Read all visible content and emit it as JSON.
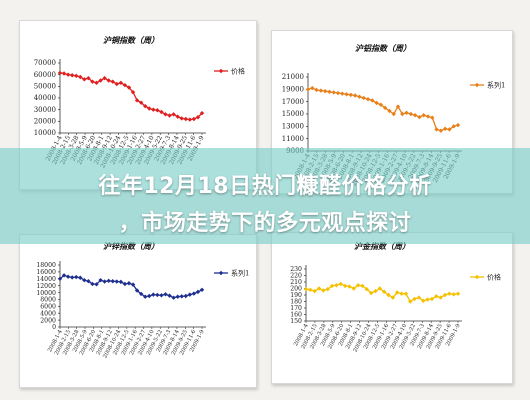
{
  "headline": {
    "line1": "往年12月18日热门糠醛价格分析",
    "line2": "，市场走势下的多元观点探讨"
  },
  "chart_data": [
    {
      "type": "line",
      "title": "沪铜指数（周）",
      "color": "#e02020",
      "marker": "diamond",
      "legend": "价格",
      "legend_position": "right",
      "ylim": [
        10000,
        70000
      ],
      "yticks": [
        10000,
        20000,
        30000,
        40000,
        50000,
        60000,
        70000
      ],
      "ytick_labels": [
        "10000",
        "20000",
        "30000",
        "40000",
        "50000",
        "60000",
        "70000"
      ],
      "xtick_labels": [
        "2008-1-4",
        "2008-2-15",
        "2008-3-28",
        "2008-5-9",
        "2008-6-20",
        "2008-8-1",
        "2008-9-12",
        "2008-10-24",
        "2008-12-5",
        "2009-1-16",
        "2009-2-27",
        "2009-4-10",
        "2009-5-22",
        "2009-7-3",
        "2009-8-14",
        "2009-9-25",
        "2009-11-6",
        "2009-1-9"
      ],
      "values": [
        61500,
        61000,
        60000,
        59500,
        59000,
        58000,
        56000,
        57000,
        54000,
        53000,
        55000,
        57000,
        55000,
        54000,
        52000,
        53000,
        51000,
        49000,
        45000,
        38000,
        36000,
        33000,
        31000,
        30000,
        29500,
        28000,
        26000,
        25000,
        26000,
        24000,
        22500,
        22000,
        21500,
        22000,
        23500,
        27000
      ]
    },
    {
      "type": "line",
      "title": "沪铝指数（周）",
      "color": "#e8801a",
      "marker": "diamond",
      "legend": "系列1",
      "legend_position": "right",
      "ylim": [
        9000,
        21000
      ],
      "yticks": [
        9000,
        11000,
        13000,
        15000,
        17000,
        19000,
        21000
      ],
      "ytick_labels": [
        "9000",
        "11000",
        "13000",
        "15000",
        "17000",
        "19000",
        "21000"
      ],
      "xtick_labels": [
        "2008-1-4",
        "2008-2-15",
        "2008-3-28",
        "2008-5-9",
        "2008-6-20",
        "2008-8-1",
        "2008-9-12",
        "2008-10-24",
        "2008-12-5",
        "2009-1-16",
        "2009-2-27",
        "2009-4-10",
        "2009-5-22",
        "2009-7-3",
        "2009-8-14",
        "2009-9-25",
        "2009-11-6",
        "2009-1-9"
      ],
      "values": [
        19000,
        19200,
        18900,
        18800,
        18700,
        18600,
        18500,
        18400,
        18300,
        18200,
        18100,
        18000,
        17800,
        17600,
        17400,
        17200,
        16800,
        16500,
        16000,
        15500,
        15000,
        16200,
        15000,
        15200,
        15000,
        14800,
        14500,
        14800,
        14600,
        14400,
        12500,
        12300,
        12600,
        12500,
        13000,
        13200
      ]
    },
    {
      "type": "line",
      "title": "沪锌指数（周）",
      "color": "#1f2f8f",
      "marker": "diamond",
      "legend": "系列1",
      "legend_position": "right",
      "ylim": [
        0,
        18000
      ],
      "yticks": [
        0,
        2000,
        4000,
        6000,
        8000,
        10000,
        12000,
        14000,
        16000,
        18000
      ],
      "ytick_labels": [
        "0",
        "2000",
        "4000",
        "6000",
        "8000",
        "10000",
        "12000",
        "14000",
        "16000",
        "18000"
      ],
      "xtick_labels": [
        "2008-1-4",
        "2008-2-15",
        "2008-3-28",
        "2008-5-9",
        "2008-6-20",
        "2008-8-1",
        "2008-9-12",
        "2008-10-24",
        "2008-12-5",
        "2009-1-16",
        "2009-2-27",
        "2009-4-10",
        "2009-5-22",
        "2009-7-3",
        "2009-8-14",
        "2009-9-25",
        "2009-11-6",
        "2009-1-9"
      ],
      "values": [
        14000,
        15000,
        14600,
        14400,
        14500,
        14300,
        13600,
        13300,
        12500,
        12400,
        13600,
        13200,
        13400,
        13300,
        13200,
        13100,
        12500,
        12700,
        12300,
        10600,
        9600,
        8800,
        9000,
        9400,
        9300,
        9200,
        9500,
        9100,
        8500,
        8800,
        8900,
        9000,
        9400,
        9700,
        10200,
        10800
      ]
    },
    {
      "type": "line",
      "title": "沪金指数（周）",
      "color": "#f4c000",
      "marker": "diamond",
      "legend": "价格",
      "legend_position": "right",
      "ylim": [
        150,
        230
      ],
      "yticks": [
        150,
        160,
        170,
        180,
        190,
        200,
        210,
        220,
        230
      ],
      "ytick_labels": [
        "150",
        "160",
        "170",
        "180",
        "190",
        "200",
        "210",
        "220",
        "230"
      ],
      "xtick_labels": [
        "2008-1-4",
        "2008-2-15",
        "2008-3-28",
        "2008-5-9",
        "2008-6-20",
        "2008-8-1",
        "2008-9-12",
        "2008-10-24",
        "2008-12-5",
        "2009-1-16",
        "2009-2-27",
        "2009-4-10",
        "2009-5-22",
        "2009-7-3",
        "2009-8-14",
        "2009-9-25",
        "2009-11-6",
        "2009-1-9"
      ],
      "values": [
        199,
        198,
        196,
        200,
        197,
        199,
        204,
        205,
        207,
        204,
        203,
        200,
        205,
        204,
        199,
        193,
        196,
        200,
        195,
        190,
        186,
        194,
        192,
        192,
        180,
        184,
        186,
        181,
        183,
        184,
        188,
        186,
        190,
        192,
        191,
        192
      ]
    }
  ]
}
